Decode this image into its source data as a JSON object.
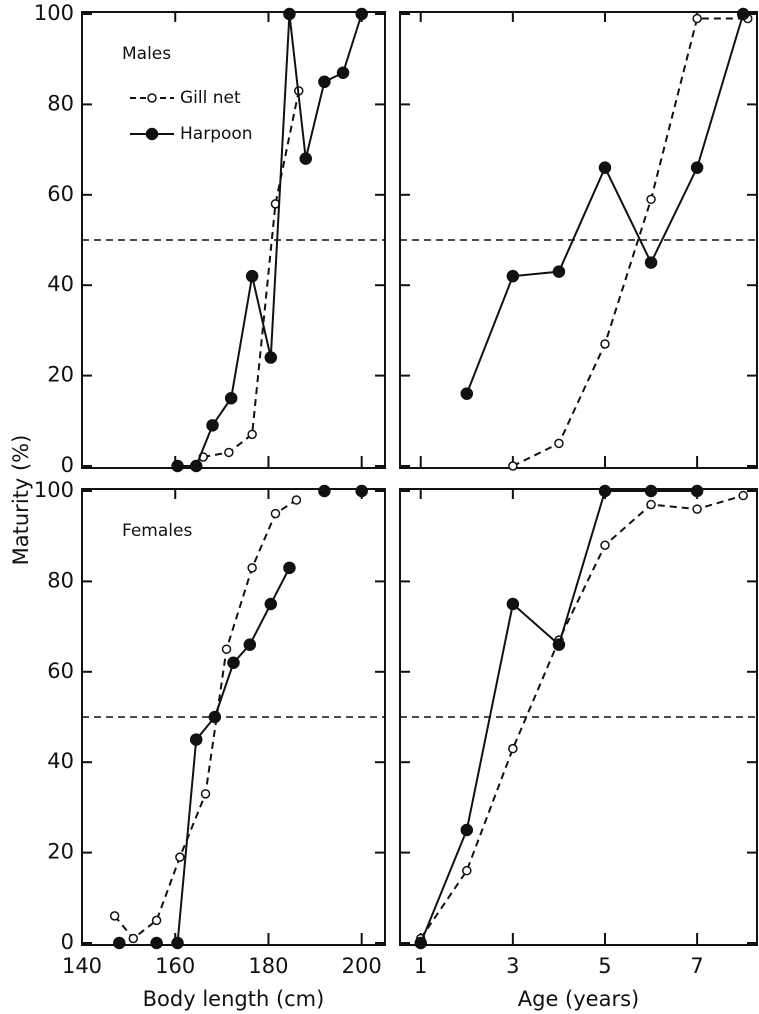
{
  "y_label": "Maturity (%)",
  "chart_data": [
    {
      "type": "line",
      "annotation": "Males",
      "legend": true,
      "xlim": [
        140,
        205
      ],
      "xticks": [
        140,
        160,
        180,
        200
      ],
      "ylim": [
        0,
        100
      ],
      "yticks": [
        0,
        20,
        40,
        60,
        80,
        100
      ],
      "reference_line": 50,
      "series": [
        {
          "name": "Gill net",
          "style": "dashed-open",
          "x": [
            166,
            171.5,
            176.5,
            181.5,
            186.5
          ],
          "values": [
            2,
            3,
            7,
            58,
            83
          ]
        },
        {
          "name": "Harpoon",
          "style": "solid-filled",
          "x": [
            160.5,
            164.5,
            168,
            172,
            176.5,
            180.5,
            184.5,
            188,
            192,
            196,
            200
          ],
          "values": [
            0,
            0,
            9,
            15,
            42,
            24,
            100,
            68,
            85,
            87,
            100
          ]
        }
      ]
    },
    {
      "type": "line",
      "xlim": [
        0.55,
        8.3
      ],
      "xticks": [
        1,
        3,
        5,
        7
      ],
      "ylim": [
        0,
        100
      ],
      "yticks": [
        0,
        20,
        40,
        60,
        80,
        100
      ],
      "reference_line": 50,
      "series": [
        {
          "name": "Gill net",
          "style": "dashed-open",
          "x": [
            3,
            4,
            5,
            6,
            7,
            8.1
          ],
          "values": [
            0,
            5,
            27,
            59,
            99,
            99
          ]
        },
        {
          "name": "Harpoon",
          "style": "solid-filled",
          "x": [
            2,
            3,
            4,
            5,
            6,
            7,
            8
          ],
          "values": [
            16,
            42,
            43,
            66,
            45,
            66,
            100
          ]
        }
      ]
    },
    {
      "type": "line",
      "annotation": "Females",
      "x_label": "Body length (cm)",
      "xlim": [
        140,
        205
      ],
      "xticks": [
        140,
        160,
        180,
        200
      ],
      "ylim": [
        0,
        100
      ],
      "yticks": [
        0,
        20,
        40,
        60,
        80,
        100
      ],
      "reference_line": 50,
      "series": [
        {
          "name": "Gill net",
          "style": "dashed-open",
          "x": [
            147,
            151,
            156,
            161,
            166.5,
            171,
            176.5,
            181.5,
            186
          ],
          "values": [
            6,
            1,
            5,
            19,
            33,
            65,
            83,
            95,
            98
          ]
        },
        {
          "name": "Harpoon",
          "style": "solid-filled",
          "x": [
            148,
            152,
            156,
            158,
            160.5,
            164.5,
            168.5,
            172.5,
            176,
            180.5,
            184.5,
            188.5,
            192,
            196,
            200
          ],
          "values": [
            0,
            null,
            0,
            null,
            0,
            45,
            50,
            62,
            66,
            75,
            83,
            null,
            100,
            null,
            100
          ]
        }
      ]
    },
    {
      "type": "line",
      "x_label": "Age (years)",
      "xlim": [
        0.55,
        8.3
      ],
      "xticks": [
        1,
        3,
        5,
        7
      ],
      "ylim": [
        0,
        100
      ],
      "yticks": [
        0,
        20,
        40,
        60,
        80,
        100
      ],
      "reference_line": 50,
      "series": [
        {
          "name": "Gill net",
          "style": "dashed-open",
          "x": [
            1,
            2,
            3,
            4,
            5,
            6,
            7,
            8
          ],
          "values": [
            1,
            16,
            43,
            67,
            88,
            97,
            96,
            99
          ]
        },
        {
          "name": "Harpoon",
          "style": "solid-filled",
          "x": [
            1,
            2,
            3,
            4,
            5,
            6,
            7
          ],
          "values": [
            0,
            25,
            75,
            66,
            100,
            100,
            100
          ]
        }
      ]
    }
  ]
}
